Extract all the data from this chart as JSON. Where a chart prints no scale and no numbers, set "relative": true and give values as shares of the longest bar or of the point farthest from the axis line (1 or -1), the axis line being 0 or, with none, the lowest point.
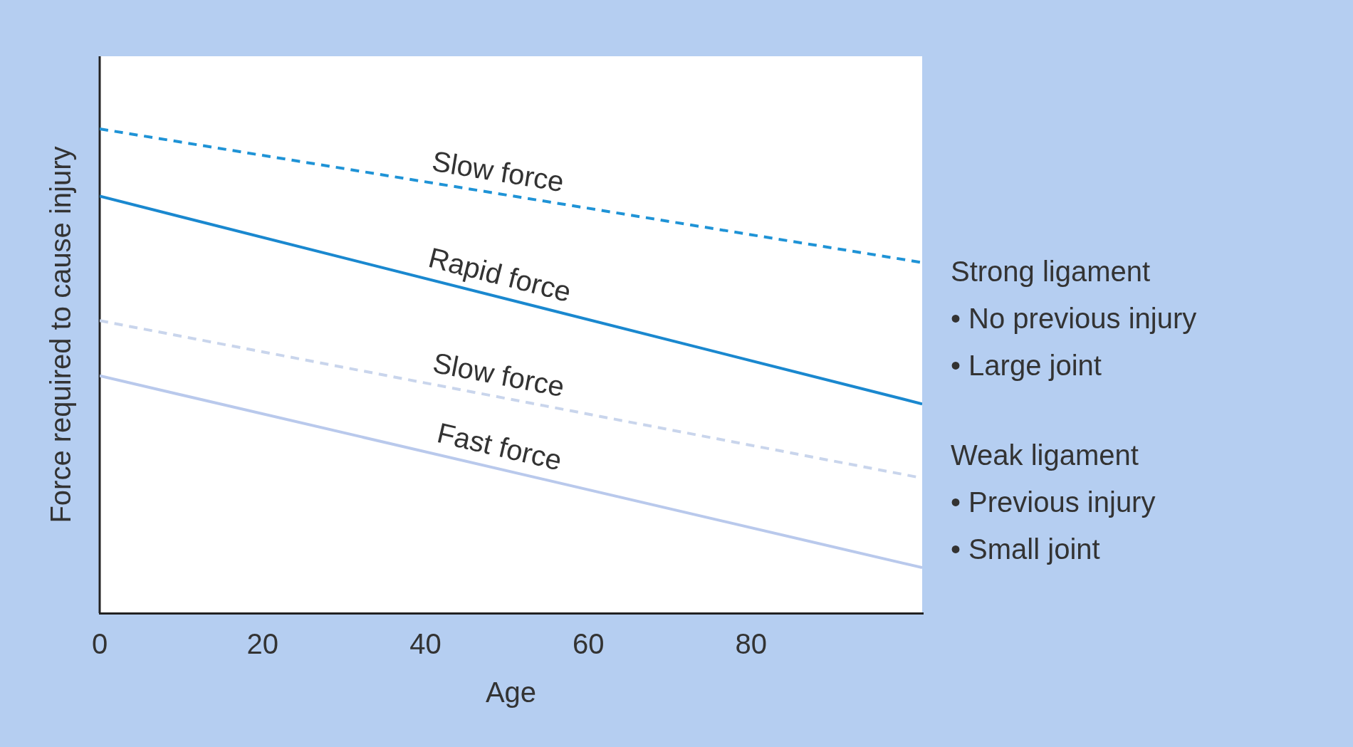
{
  "chart_data": {
    "type": "line",
    "relative": true,
    "xlabel": "Age",
    "ylabel": "Force required to cause injury",
    "x": [
      0,
      101
    ],
    "xlim": [
      0,
      101
    ],
    "xticks": [
      0,
      20,
      40,
      60,
      80
    ],
    "grid": false,
    "legend": false,
    "marker": "none",
    "series": [
      {
        "name": "Slow force",
        "color": "#1f93d6",
        "line_style": "dashed",
        "values": [
          1,
          0.724
        ]
      },
      {
        "name": "Rapid force",
        "color": "#1a88cf",
        "line_style": "solid",
        "values": [
          0.861,
          0.432
        ]
      },
      {
        "name": "Slow force",
        "color": "#c9d5ec",
        "line_style": "dashed",
        "values": [
          0.604,
          0.279
        ]
      },
      {
        "name": "Fast force",
        "color": "#b9c9ec",
        "line_style": "solid",
        "values": [
          0.49,
          0.094
        ]
      }
    ],
    "annotations": [
      "Strong ligament",
      "• No previous injury",
      "• Large joint",
      "Weak ligament",
      "• Previous injury",
      "• Small joint"
    ]
  }
}
